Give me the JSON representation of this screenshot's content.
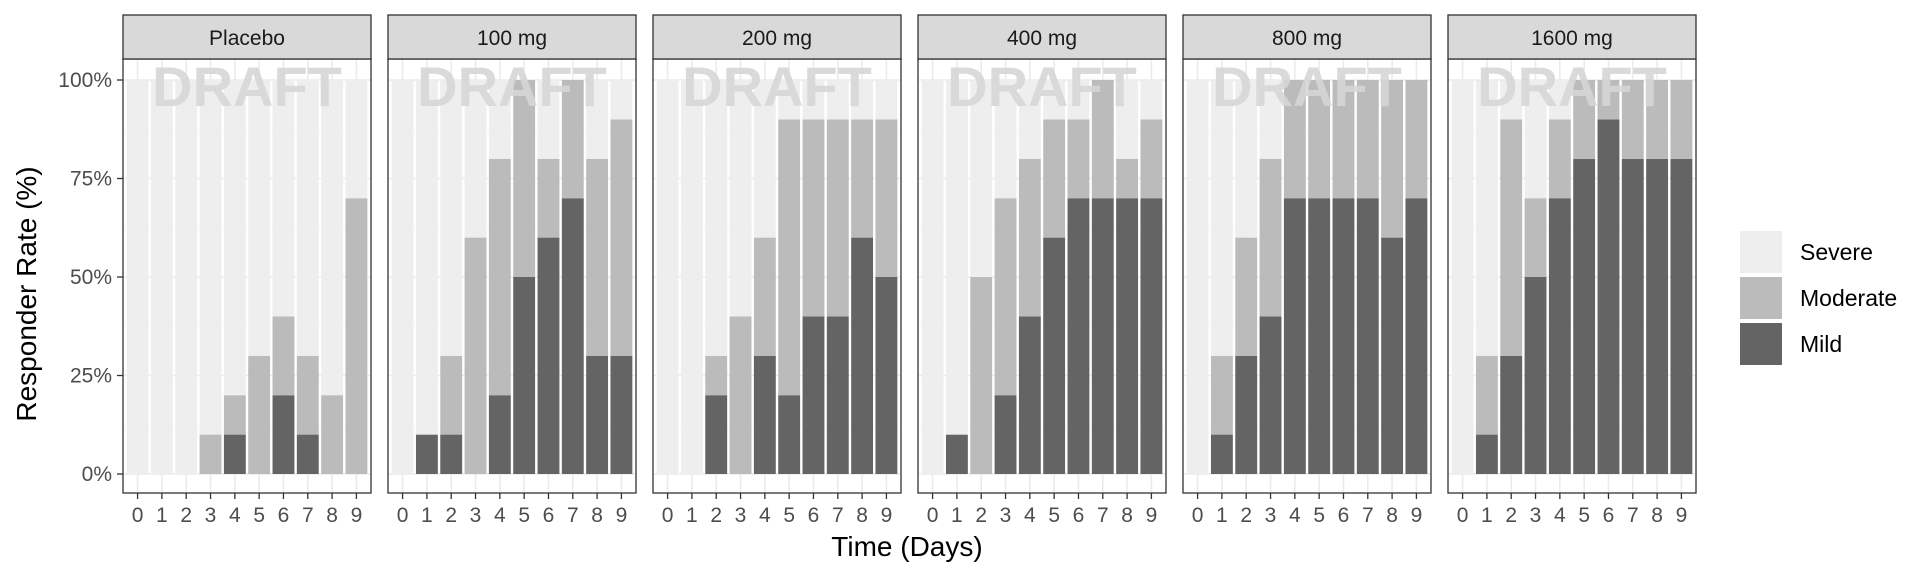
{
  "chart_data": {
    "type": "bar",
    "stacked": true,
    "watermark": "DRAFT",
    "xlabel": "Time (Days)",
    "ylabel": "Responder Rate (%)",
    "ylim": [
      0,
      100
    ],
    "yticks": [
      0,
      25,
      50,
      75,
      100
    ],
    "ytick_labels": [
      "0%",
      "25%",
      "50%",
      "75%",
      "100%"
    ],
    "categories": [
      "0",
      "1",
      "2",
      "3",
      "4",
      "5",
      "6",
      "7",
      "8",
      "9"
    ],
    "legend_position": "right",
    "series_order": [
      "Severe",
      "Moderate",
      "Mild"
    ],
    "colors": {
      "Severe": "#eeeeee",
      "Moderate": "#bbbbbb",
      "Mild": "#646464"
    },
    "panel_background": "#ffffff",
    "strip_background": "#d9d9d9",
    "facets": [
      {
        "label": "Placebo",
        "series": [
          {
            "name": "Mild",
            "values": [
              0,
              0,
              0,
              0,
              10,
              0,
              20,
              10,
              0,
              0
            ]
          },
          {
            "name": "Moderate",
            "values": [
              0,
              0,
              0,
              10,
              10,
              30,
              20,
              20,
              20,
              70
            ]
          },
          {
            "name": "Severe",
            "values": [
              100,
              100,
              100,
              90,
              80,
              70,
              60,
              70,
              80,
              30
            ]
          }
        ]
      },
      {
        "label": "100 mg",
        "series": [
          {
            "name": "Mild",
            "values": [
              0,
              10,
              10,
              0,
              20,
              50,
              60,
              70,
              30,
              30
            ]
          },
          {
            "name": "Moderate",
            "values": [
              0,
              0,
              20,
              60,
              60,
              50,
              20,
              30,
              50,
              60
            ]
          },
          {
            "name": "Severe",
            "values": [
              100,
              90,
              70,
              40,
              20,
              0,
              20,
              0,
              20,
              10
            ]
          }
        ]
      },
      {
        "label": "200 mg",
        "series": [
          {
            "name": "Mild",
            "values": [
              0,
              0,
              20,
              0,
              30,
              20,
              40,
              40,
              60,
              50
            ]
          },
          {
            "name": "Moderate",
            "values": [
              0,
              0,
              10,
              40,
              30,
              70,
              50,
              50,
              30,
              40
            ]
          },
          {
            "name": "Severe",
            "values": [
              100,
              100,
              70,
              60,
              40,
              10,
              10,
              10,
              10,
              10
            ]
          }
        ]
      },
      {
        "label": "400 mg",
        "series": [
          {
            "name": "Mild",
            "values": [
              0,
              10,
              0,
              20,
              40,
              60,
              70,
              70,
              70,
              70
            ]
          },
          {
            "name": "Moderate",
            "values": [
              0,
              0,
              50,
              50,
              40,
              30,
              20,
              30,
              10,
              20
            ]
          },
          {
            "name": "Severe",
            "values": [
              100,
              90,
              50,
              30,
              20,
              10,
              10,
              0,
              20,
              10
            ]
          }
        ]
      },
      {
        "label": "800 mg",
        "series": [
          {
            "name": "Mild",
            "values": [
              0,
              10,
              30,
              40,
              70,
              70,
              70,
              70,
              60,
              70
            ]
          },
          {
            "name": "Moderate",
            "values": [
              0,
              20,
              30,
              40,
              30,
              30,
              30,
              30,
              40,
              30
            ]
          },
          {
            "name": "Severe",
            "values": [
              100,
              70,
              40,
              20,
              0,
              0,
              0,
              0,
              0,
              0
            ]
          }
        ]
      },
      {
        "label": "1600 mg",
        "series": [
          {
            "name": "Mild",
            "values": [
              0,
              10,
              30,
              50,
              70,
              80,
              90,
              80,
              80,
              80
            ]
          },
          {
            "name": "Moderate",
            "values": [
              0,
              20,
              60,
              20,
              20,
              20,
              10,
              20,
              20,
              20
            ]
          },
          {
            "name": "Severe",
            "values": [
              100,
              70,
              10,
              30,
              10,
              0,
              0,
              0,
              0,
              0
            ]
          }
        ]
      }
    ]
  }
}
